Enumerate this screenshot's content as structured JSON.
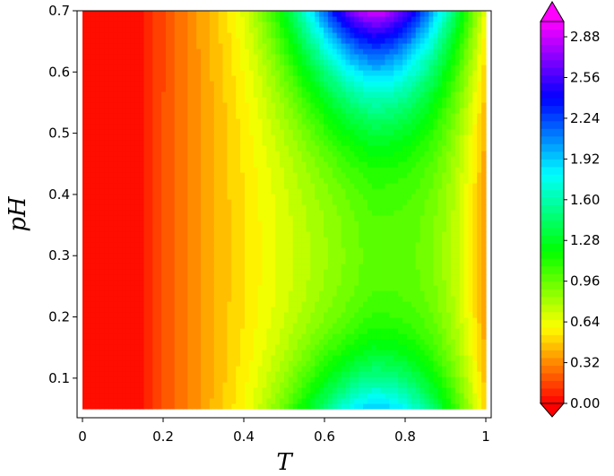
{
  "chart_data": {
    "type": "heatmap",
    "title": "",
    "xlabel": "T",
    "ylabel": "pH",
    "xlim": [
      0,
      1
    ],
    "ylim": [
      0.05,
      0.7
    ],
    "x_ticks": [
      "0",
      "0.2",
      "0.4",
      "0.6",
      "0.8",
      "1"
    ],
    "x_tick_values": [
      0,
      0.2,
      0.4,
      0.6,
      0.8,
      1.0
    ],
    "y_ticks": [
      "0.1",
      "0.2",
      "0.3",
      "0.4",
      "0.5",
      "0.6",
      "0.7"
    ],
    "y_tick_values": [
      0.1,
      0.2,
      0.3,
      0.4,
      0.5,
      0.6,
      0.7
    ],
    "colorbar": {
      "min": 0.0,
      "max": 3.0,
      "extend": "both",
      "tick_labels": [
        "0.00",
        "0.32",
        "0.64",
        "0.96",
        "1.28",
        "1.60",
        "1.92",
        "2.24",
        "2.56",
        "2.88"
      ],
      "tick_values": [
        0.0,
        0.32,
        0.64,
        0.96,
        1.28,
        1.6,
        1.92,
        2.24,
        2.56,
        2.88
      ],
      "colormap": "hsv"
    },
    "features": {
      "min_value_region": "T near 0 (value 0.00, red)",
      "saddle": {
        "T": 0.72,
        "pH": 0.3,
        "value": 1.0
      },
      "max_top": {
        "T": 0.7,
        "pH": 0.7,
        "value": 2.9
      },
      "max_bottom": {
        "T": 0.7,
        "pH": 0.05,
        "value": 1.95
      },
      "right_edge_value": 0.35
    },
    "grid": false
  }
}
